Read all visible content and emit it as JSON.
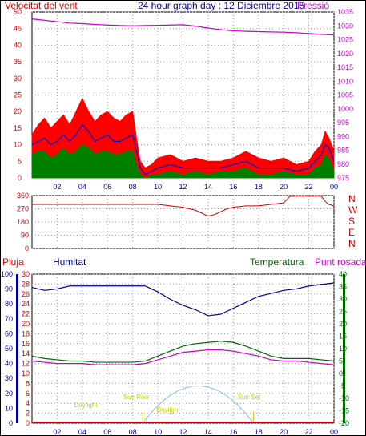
{
  "colors": {
    "wind": "#ff0000",
    "wind_avg": "#0000cc",
    "wind_gust_low": "#008000",
    "pressure": "#cc00cc",
    "direction": "#cc0000",
    "humidity": "#000099",
    "temperature": "#006600",
    "dew_point": "#cc00cc",
    "rain": "#cc0000",
    "sun": "#87b9ee",
    "daylight_labels": "#cccc00"
  },
  "chart_data": [
    {
      "type": "line",
      "title": "24 hour graph day : 12 Diciembre 2015",
      "left_label": "Velocitat del vent",
      "right_label": "Pressió",
      "x_ticks": [
        "02",
        "04",
        "06",
        "08",
        "10",
        "12",
        "14",
        "16",
        "18",
        "20",
        "22",
        "00"
      ],
      "y_left_ticks": [
        0,
        5,
        10,
        15,
        20,
        25,
        30,
        35,
        40,
        45,
        50
      ],
      "y_left_range": [
        0,
        50
      ],
      "y_right_ticks": [
        975,
        980,
        985,
        990,
        995,
        1000,
        1005,
        1010,
        1015,
        1020,
        1025,
        1030,
        1035
      ],
      "y_right_range": [
        975,
        1035
      ],
      "x_range_hours": [
        0,
        24
      ],
      "series": [
        {
          "key": "wind_max",
          "hours": [
            0,
            0.5,
            1,
            1.5,
            2,
            2.5,
            3,
            3.5,
            4,
            4.5,
            5,
            5.5,
            6,
            6.5,
            7,
            7.5,
            8,
            8.3,
            8.6,
            9,
            9.5,
            10,
            11,
            12,
            13,
            14,
            15,
            16,
            17,
            18,
            19,
            20,
            21,
            22,
            22.5,
            23,
            23.3,
            23.6,
            24
          ],
          "values": [
            13,
            16,
            18,
            15,
            17,
            19,
            16,
            20,
            24,
            20,
            17,
            19,
            20,
            18,
            17,
            19,
            20,
            12,
            5,
            3,
            4,
            6,
            7,
            5,
            6,
            5,
            5,
            6,
            8,
            6,
            5,
            6,
            4,
            5,
            8,
            10,
            14,
            12,
            8
          ]
        },
        {
          "key": "wind_avg",
          "hours": [
            0,
            0.5,
            1,
            1.5,
            2,
            2.5,
            3,
            3.5,
            4,
            4.5,
            5,
            5.5,
            6,
            6.5,
            7,
            7.5,
            8,
            8.3,
            8.6,
            9,
            9.5,
            10,
            11,
            12,
            13,
            14,
            15,
            16,
            17,
            18,
            19,
            20,
            21,
            22,
            22.5,
            23,
            23.3,
            23.6,
            24
          ],
          "values": [
            10,
            11,
            12,
            10,
            11,
            13,
            11,
            13,
            16,
            14,
            11,
            12,
            13,
            11,
            11,
            12,
            13,
            8,
            3,
            1,
            2,
            3,
            4,
            3,
            3,
            3,
            3,
            4,
            5,
            3,
            3,
            3,
            2,
            3,
            5,
            7,
            10,
            9,
            5
          ]
        },
        {
          "key": "wind_low",
          "hours": [
            0,
            0.5,
            1,
            1.5,
            2,
            2.5,
            3,
            3.5,
            4,
            4.5,
            5,
            5.5,
            6,
            6.5,
            7,
            7.5,
            8,
            8.3,
            8.6,
            9,
            9.5,
            10,
            11,
            12,
            13,
            14,
            15,
            16,
            17,
            18,
            19,
            20,
            21,
            22,
            22.5,
            23,
            23.3,
            23.6,
            24
          ],
          "values": [
            7,
            8,
            8,
            6,
            7,
            9,
            7,
            8,
            10,
            9,
            7,
            8,
            8,
            7,
            7,
            8,
            8,
            4,
            1,
            0,
            1,
            1,
            2,
            1,
            2,
            1,
            2,
            2,
            3,
            1,
            1,
            2,
            1,
            1,
            3,
            4,
            7,
            6,
            2
          ]
        },
        {
          "key": "pressure",
          "hours": [
            0,
            1,
            2,
            3,
            4,
            5,
            6,
            7,
            8,
            9,
            10,
            11,
            12,
            13,
            14,
            15,
            16,
            17,
            18,
            19,
            20,
            21,
            22,
            23,
            24
          ],
          "values": [
            1032.5,
            1032,
            1031.5,
            1031,
            1030.8,
            1030.5,
            1030.3,
            1030.1,
            1030,
            1030.1,
            1030.2,
            1030.3,
            1030.4,
            1029.9,
            1029.2,
            1028.6,
            1028.2,
            1028,
            1027.9,
            1027.8,
            1027.7,
            1027.5,
            1027.2,
            1026.9,
            1026.7
          ]
        }
      ]
    },
    {
      "type": "line",
      "y_ticks": [
        "360",
        "270",
        "180",
        "90",
        "0"
      ],
      "y_range": [
        0,
        360
      ],
      "right_labels": [
        "N",
        "W",
        "S",
        "E",
        "N"
      ],
      "series": [
        {
          "key": "direction",
          "hours": [
            0,
            1,
            2,
            3,
            4,
            5,
            6,
            7,
            8,
            9,
            10,
            11,
            12,
            12.5,
            13,
            13.5,
            14,
            14.5,
            15,
            15.5,
            16,
            17,
            18,
            19,
            20,
            20.5,
            21,
            22,
            23,
            23.3,
            23.6,
            24
          ],
          "values": [
            300,
            300,
            300,
            300,
            300,
            300,
            300,
            300,
            300,
            300,
            300,
            290,
            280,
            270,
            260,
            240,
            220,
            230,
            250,
            270,
            280,
            290,
            290,
            300,
            310,
            355,
            355,
            355,
            355,
            320,
            300,
            290
          ]
        }
      ]
    },
    {
      "type": "line",
      "labels": {
        "rain": "Pluja",
        "humidity": "Humitat",
        "temperature": "Temperatura",
        "dew_point": "Punt rosada"
      },
      "y_rain_ticks": [
        0,
        2,
        4,
        6,
        8,
        10,
        12,
        14,
        16,
        18,
        20,
        22,
        24,
        26,
        28,
        30
      ],
      "y_humidity_ticks": [
        0,
        10,
        20,
        30,
        40,
        50,
        60,
        70,
        80,
        90,
        100
      ],
      "y_temp_ticks": [
        -20,
        -15,
        -10,
        -5,
        0,
        5,
        10,
        15,
        20,
        25,
        30,
        35,
        40
      ],
      "daylight_labels": [
        "Daylight",
        "Sun Rise",
        "Daylight",
        "Sun Set"
      ],
      "series": [
        {
          "key": "humidity",
          "hours": [
            0,
            1,
            2,
            3,
            4,
            5,
            6,
            7,
            8,
            9,
            10,
            11,
            12,
            13,
            14,
            15,
            16,
            17,
            18,
            19,
            20,
            21,
            22,
            23,
            24
          ],
          "values": [
            90,
            88,
            89,
            91,
            91,
            91,
            91,
            91,
            91,
            91,
            87,
            82,
            78,
            75,
            71,
            72,
            76,
            80,
            84,
            86,
            88,
            89,
            91,
            92,
            93
          ]
        },
        {
          "key": "temperature",
          "hours": [
            0,
            1,
            2,
            3,
            4,
            5,
            6,
            7,
            8,
            9,
            10,
            11,
            12,
            13,
            14,
            15,
            16,
            17,
            18,
            19,
            20,
            21,
            22,
            23,
            24
          ],
          "values": [
            7,
            6,
            5.5,
            5,
            5,
            4.5,
            4.5,
            4.5,
            4.5,
            5,
            7,
            9,
            11,
            12,
            12.5,
            13,
            12.5,
            11,
            9,
            7,
            6,
            6,
            6,
            5.5,
            5
          ]
        },
        {
          "key": "dew_point",
          "hours": [
            0,
            1,
            2,
            3,
            4,
            5,
            6,
            7,
            8,
            9,
            10,
            11,
            12,
            13,
            14,
            15,
            16,
            17,
            18,
            19,
            20,
            21,
            22,
            23,
            24
          ],
          "values": [
            5,
            4.5,
            4,
            4,
            4,
            3.5,
            3.5,
            3.5,
            3.5,
            4,
            5.5,
            7,
            8.5,
            9,
            9.5,
            9.5,
            9,
            8,
            7,
            5.5,
            5,
            5,
            4.5,
            4,
            3.5
          ]
        },
        {
          "key": "solar_hours_start",
          "value": 8.8
        },
        {
          "key": "solar_hours_end",
          "value": 17.6
        },
        {
          "key": "solar_peak_hour",
          "value": 13.2
        },
        {
          "key": "solar_peak_temp",
          "value": -5
        }
      ]
    }
  ]
}
